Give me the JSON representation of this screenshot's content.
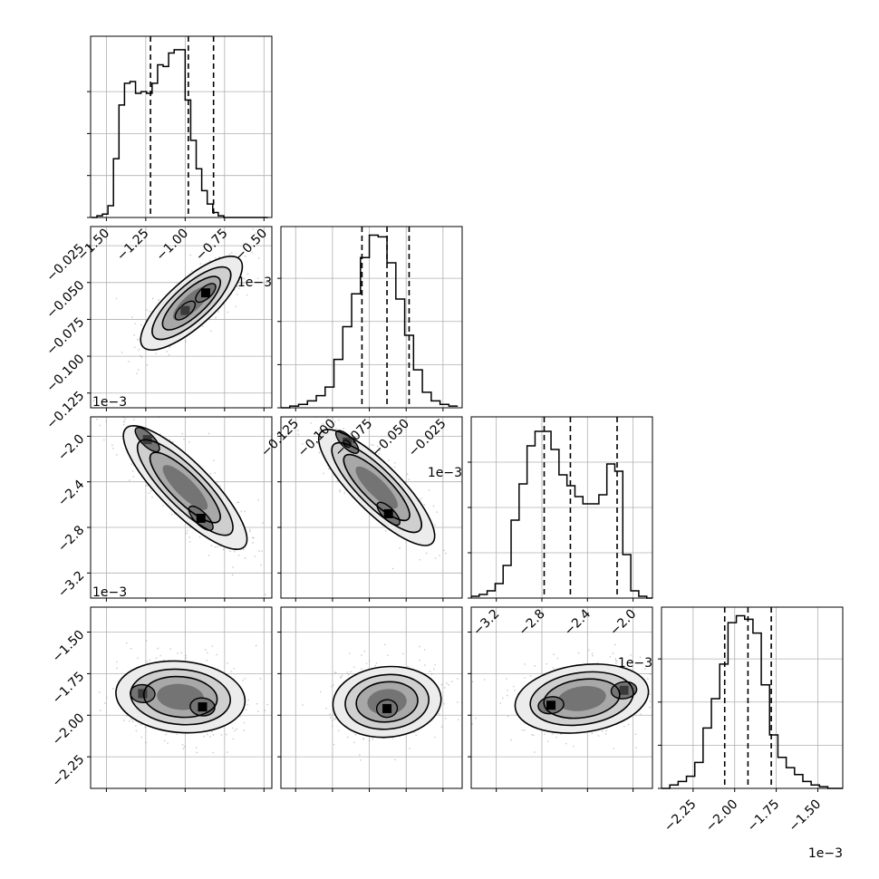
{
  "chart_data": {
    "type": "corner",
    "grid": true,
    "params": [
      {
        "id": "p0",
        "range": [
          -1.6,
          -0.45
        ],
        "ticks": [
          -1.5,
          -1.25,
          -1.0,
          -0.75,
          -0.5
        ],
        "tick_labels": [
          "−1.50",
          "−1.25",
          "−1.00",
          "−0.75",
          "−0.50"
        ],
        "offset": "1e−3",
        "quantiles": [
          -1.22,
          -0.98,
          -0.82
        ],
        "hist_bins": [
          -1.595,
          -1.56,
          -1.525,
          -1.49,
          -1.455,
          -1.42,
          -1.385,
          -1.35,
          -1.315,
          -1.28,
          -1.245,
          -1.21,
          -1.175,
          -1.14,
          -1.105,
          -1.07,
          -1.035,
          -1.0,
          -0.965,
          -0.93,
          -0.895,
          -0.86,
          -0.825,
          -0.79,
          -0.755,
          -0.72,
          -0.685,
          -0.65,
          -0.615,
          -0.58,
          -0.545,
          -0.51,
          -0.475
        ],
        "hist_counts": [
          0,
          0.01,
          0.02,
          0.07,
          0.35,
          0.67,
          0.8,
          0.81,
          0.74,
          0.75,
          0.74,
          0.8,
          0.91,
          0.9,
          0.98,
          1.0,
          1.0,
          0.7,
          0.46,
          0.29,
          0.16,
          0.08,
          0.03,
          0.01,
          0.0,
          0.0,
          0,
          0,
          0,
          0,
          0,
          0
        ],
        "hist_yticks": [
          0.25,
          0.5,
          0.75
        ],
        "hist_ymax": 1.08
      },
      {
        "id": "p1",
        "range": [
          -0.135,
          -0.012
        ],
        "ticks": [
          -0.125,
          -0.1,
          -0.075,
          -0.05,
          -0.025
        ],
        "tick_labels": [
          "−0.125",
          "−0.100",
          "−0.075",
          "−0.050",
          "−0.025"
        ],
        "offset": "1e−3",
        "quantiles": [
          -0.08,
          -0.063,
          -0.048
        ],
        "hist_bins": [
          -0.135,
          -0.129,
          -0.123,
          -0.117,
          -0.111,
          -0.105,
          -0.099,
          -0.093,
          -0.087,
          -0.081,
          -0.075,
          -0.069,
          -0.063,
          -0.057,
          -0.051,
          -0.045,
          -0.039,
          -0.033,
          -0.027,
          -0.021,
          -0.015
        ],
        "hist_counts": [
          0.0,
          0.01,
          0.02,
          0.04,
          0.07,
          0.12,
          0.28,
          0.47,
          0.66,
          0.87,
          1.0,
          0.99,
          0.84,
          0.63,
          0.42,
          0.22,
          0.09,
          0.04,
          0.02,
          0.01
        ],
        "hist_yticks": [
          0.25,
          0.5,
          0.75
        ],
        "hist_ymax": 1.05
      },
      {
        "id": "p2",
        "range": [
          -3.42,
          -1.83
        ],
        "ticks": [
          -3.2,
          -2.8,
          -2.4,
          -2.0
        ],
        "tick_labels": [
          "−3.2",
          "−2.8",
          "−2.4",
          "−2.0"
        ],
        "offset": "1e−3",
        "quantiles": [
          -2.78,
          -2.55,
          -2.14
        ],
        "hist_bins": [
          -3.42,
          -3.35,
          -3.28,
          -3.21,
          -3.14,
          -3.07,
          -3.0,
          -2.93,
          -2.86,
          -2.79,
          -2.72,
          -2.65,
          -2.58,
          -2.51,
          -2.44,
          -2.37,
          -2.3,
          -2.23,
          -2.16,
          -2.09,
          -2.02,
          -1.95,
          -1.88,
          -1.81
        ],
        "hist_counts": [
          0.01,
          0.02,
          0.04,
          0.08,
          0.18,
          0.43,
          0.63,
          0.84,
          0.92,
          0.92,
          0.82,
          0.68,
          0.62,
          0.56,
          0.52,
          0.52,
          0.57,
          0.74,
          0.7,
          0.24,
          0.04,
          0.01,
          0.0
        ],
        "hist_yticks": [
          0.25,
          0.5,
          0.75
        ],
        "hist_ymax": 1.0
      },
      {
        "id": "p3",
        "range": [
          -2.44,
          -1.35
        ],
        "ticks": [
          -2.25,
          -2.0,
          -1.75,
          -1.5
        ],
        "tick_labels": [
          "−2.25",
          "−2.00",
          "−1.75",
          "−1.50"
        ],
        "offset": "1e−3",
        "quantiles": [
          -2.06,
          -1.92,
          -1.78
        ],
        "hist_bins": [
          -2.44,
          -2.39,
          -2.34,
          -2.29,
          -2.24,
          -2.19,
          -2.14,
          -2.09,
          -2.04,
          -1.99,
          -1.94,
          -1.89,
          -1.84,
          -1.79,
          -1.74,
          -1.69,
          -1.64,
          -1.59,
          -1.54,
          -1.49,
          -1.44,
          -1.39,
          -1.34
        ],
        "hist_counts": [
          0.0,
          0.02,
          0.04,
          0.07,
          0.15,
          0.35,
          0.52,
          0.72,
          0.96,
          1.0,
          0.98,
          0.9,
          0.6,
          0.31,
          0.18,
          0.12,
          0.08,
          0.04,
          0.02,
          0.01,
          0.0,
          0.0
        ],
        "hist_yticks": [
          0.25,
          0.5,
          0.75
        ],
        "hist_ymax": 1.05
      }
    ],
    "pairs": [
      {
        "x": 0,
        "y": 1,
        "center": [
          -0.96,
          -0.064
        ],
        "sd": [
          0.2,
          0.018
        ],
        "angle_deg": 42,
        "aspect": 0.35,
        "modes": [
          [
            -0.87,
            -0.057
          ],
          [
            -1.0,
            -0.069
          ]
        ]
      },
      {
        "x": 0,
        "y": 2,
        "center": [
          -1.0,
          -2.45
        ],
        "sd": [
          0.22,
          0.35
        ],
        "angle_deg": -45,
        "aspect": 0.3,
        "modes": [
          [
            -0.9,
            -2.72
          ],
          [
            -1.24,
            -2.03
          ]
        ]
      },
      {
        "x": 1,
        "y": 2,
        "center": [
          -0.07,
          -2.45
        ],
        "sd": [
          0.02,
          0.35
        ],
        "angle_deg": -45,
        "aspect": 0.3,
        "modes": [
          [
            -0.062,
            -2.68
          ],
          [
            -0.09,
            -2.05
          ]
        ]
      },
      {
        "x": 0,
        "y": 3,
        "center": [
          -1.03,
          -1.89
        ],
        "sd": [
          0.22,
          0.13
        ],
        "angle_deg": -5,
        "aspect": 0.55,
        "modes": [
          [
            -0.89,
            -1.95
          ],
          [
            -1.27,
            -1.87
          ]
        ]
      },
      {
        "x": 1,
        "y": 3,
        "center": [
          -0.063,
          -1.92
        ],
        "sd": [
          0.018,
          0.13
        ],
        "angle_deg": 5,
        "aspect": 0.65,
        "modes": [
          [
            -0.063,
            -1.96
          ]
        ]
      },
      {
        "x": 2,
        "y": 3,
        "center": [
          -2.45,
          -1.9
        ],
        "sd": [
          0.32,
          0.13
        ],
        "angle_deg": 8,
        "aspect": 0.5,
        "modes": [
          [
            -2.72,
            -1.94
          ],
          [
            -2.08,
            -1.85
          ]
        ]
      }
    ]
  }
}
